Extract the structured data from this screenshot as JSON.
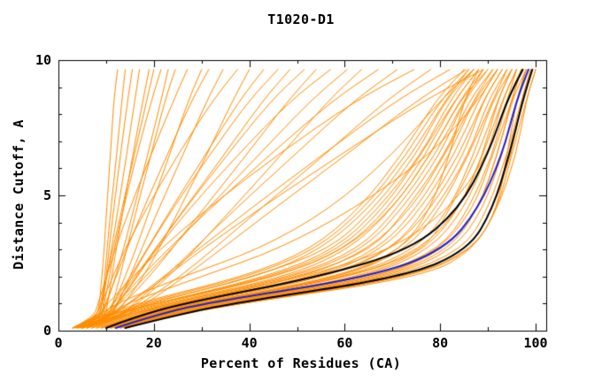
{
  "figure": {
    "background": "#FFFFFF"
  },
  "chart_data": {
    "type": "line",
    "title": "T1020-D1",
    "xlabel": "Percent of Residues (CA)",
    "ylabel": "Distance Cutoff, A",
    "xlim": [
      0,
      100
    ],
    "ylim": [
      0,
      10
    ],
    "x_ticks_major": [
      0,
      20,
      40,
      60,
      80,
      100
    ],
    "x_ticks_minor": [
      10,
      30,
      50,
      70,
      90
    ],
    "y_ticks_major": [
      0,
      5,
      10
    ],
    "y_ticks_minor": [
      1,
      2,
      3,
      4,
      6,
      7,
      8,
      9
    ],
    "grid": false,
    "legend": "none",
    "axis_color": "#000000",
    "background": "#FFFFFF",
    "y_levels": [
      0.1,
      0.5,
      1,
      2,
      3,
      4.5,
      6.5,
      8.5,
      9.65
    ],
    "series": [
      {
        "name": "server-predictions",
        "color": "#FF8C00",
        "line_width": 1,
        "curves": [
          [
            4,
            8,
            8.6,
            9.1,
            9.6,
            10.1,
            10.9,
            11.6,
            12.4
          ],
          [
            4.5,
            8.7,
            9.1,
            9.7,
            10.2,
            11,
            12.2,
            13.3,
            14
          ],
          [
            5,
            9.1,
            9.4,
            10,
            10.6,
            11.6,
            13,
            14.5,
            15.5
          ],
          [
            3.5,
            8.5,
            9.1,
            10.2,
            11.1,
            12.5,
            14.3,
            16,
            17
          ],
          [
            5.5,
            9.8,
            10.3,
            11.2,
            12.1,
            13.6,
            15.6,
            17.7,
            19
          ],
          [
            3,
            8,
            8.8,
            10.1,
            11.4,
            13.3,
            15.9,
            18.5,
            20
          ],
          [
            5,
            9.2,
            9.6,
            10.7,
            11.7,
            13.6,
            16.4,
            19.5,
            21.5
          ],
          [
            4,
            9,
            10.1,
            12,
            13.6,
            15.8,
            18.7,
            21.5,
            23
          ],
          [
            6,
            10.6,
            11.4,
            12.9,
            14.3,
            16.4,
            19.4,
            22.3,
            24.5
          ],
          [
            3,
            7.4,
            8.3,
            10.1,
            11.9,
            14.9,
            19.4,
            24.1,
            27
          ],
          [
            5,
            10.1,
            11.6,
            14,
            16.2,
            19.2,
            23.3,
            27.2,
            30
          ],
          [
            4,
            8.7,
            9.9,
            12.1,
            14.3,
            17.8,
            22.8,
            27.9,
            31.5
          ],
          [
            6,
            11,
            12.4,
            15,
            17.4,
            21,
            26.1,
            31.1,
            34.5
          ],
          [
            3.5,
            7.9,
            9,
            11.4,
            13.9,
            18.4,
            25,
            32.3,
            37.5
          ],
          [
            5,
            11.3,
            13.8,
            17.8,
            21,
            25.4,
            31.1,
            36.5,
            40
          ],
          [
            4,
            9.4,
            11.4,
            15.1,
            18.5,
            23.6,
            30.8,
            37.9,
            43
          ],
          [
            6,
            10.7,
            12.2,
            15.4,
            18.6,
            23.9,
            31.7,
            39.9,
            46
          ],
          [
            3,
            8.9,
            11.6,
            16.1,
            20.2,
            26.4,
            34.7,
            42.8,
            48.5
          ],
          [
            5,
            10.2,
            12.3,
            16.4,
            20.3,
            26.5,
            35.4,
            44.5,
            51.5
          ],
          [
            4,
            10.5,
            13.7,
            19.1,
            23.7,
            30.4,
            39.4,
            48.1,
            54
          ],
          [
            6,
            10.8,
            12.6,
            16.5,
            20.5,
            27.4,
            37.6,
            48.6,
            57
          ],
          [
            3.5,
            9.6,
            12.7,
            18.3,
            23.5,
            31.2,
            42,
            52.8,
            60.5
          ],
          [
            5,
            12.4,
            16.5,
            23.1,
            28.6,
            36.4,
            46.7,
            56.5,
            63.5
          ],
          [
            4,
            9.4,
            12.2,
            17.4,
            22.9,
            31.7,
            44.3,
            57.4,
            67
          ],
          [
            6,
            12.4,
            15.9,
            22.4,
            28.3,
            37.1,
            49.5,
            61.9,
            71
          ],
          [
            3,
            8,
            10.3,
            15.6,
            21.3,
            31.1,
            45.9,
            62.2,
            74.5
          ],
          [
            5,
            12.7,
            17.4,
            25.5,
            32.4,
            42.3,
            55.8,
            68.6,
            78
          ],
          [
            4,
            10.5,
            14.6,
            22.1,
            29.2,
            40.2,
            55.3,
            70.7,
            82
          ],
          [
            6,
            13.5,
            18.4,
            26.5,
            34,
            45.1,
            60.3,
            75,
            85.5
          ],
          [
            4.5,
            10.8,
            14.9,
            22.6,
            30.1,
            42.1,
            59.1,
            76.5,
            89
          ],
          [
            3,
            9,
            16,
            39,
            53,
            63,
            72,
            79,
            85
          ],
          [
            4,
            10,
            17,
            40,
            54,
            64,
            73,
            80,
            86
          ],
          [
            4,
            10,
            18,
            42,
            55,
            65,
            74,
            81,
            86
          ],
          [
            4,
            11,
            19,
            41,
            57,
            66,
            75,
            81,
            87
          ],
          [
            5,
            11,
            20,
            44,
            58,
            67,
            76,
            82,
            87
          ],
          [
            5,
            11,
            20,
            45,
            59,
            68,
            76,
            83,
            88
          ],
          [
            6,
            12,
            21,
            46,
            60,
            69,
            77,
            83,
            88
          ],
          [
            6,
            12,
            22,
            48,
            61,
            70,
            78,
            84,
            89
          ],
          [
            6,
            13,
            23,
            49,
            63,
            71,
            79,
            85,
            89
          ],
          [
            7,
            13,
            23,
            50,
            64,
            72,
            80,
            85,
            90
          ],
          [
            7,
            14,
            24,
            51,
            66,
            73,
            81,
            86,
            91
          ],
          [
            7,
            14,
            25,
            52,
            65,
            74,
            81,
            87,
            91
          ],
          [
            8,
            15,
            26,
            54,
            67,
            75,
            82,
            87,
            92
          ],
          [
            8,
            15,
            26,
            55,
            68,
            76,
            83,
            88,
            92
          ],
          [
            9,
            16,
            27,
            56,
            70,
            77,
            84,
            89,
            93
          ],
          [
            9,
            16,
            28,
            57,
            70,
            78,
            85,
            89,
            93
          ],
          [
            9,
            17,
            29,
            59,
            72,
            79,
            86,
            90,
            94
          ],
          [
            10,
            17,
            29,
            60,
            73,
            80,
            86,
            91,
            94
          ],
          [
            10,
            17,
            30,
            61,
            75,
            82,
            87,
            91,
            95
          ],
          [
            10,
            18,
            31,
            62,
            77,
            82,
            88,
            92,
            95
          ],
          [
            11,
            18,
            32,
            64,
            77,
            84,
            89,
            93,
            96
          ],
          [
            11,
            19,
            33,
            65,
            78,
            85,
            90,
            93,
            96
          ],
          [
            12,
            19,
            33,
            66,
            80,
            86,
            91,
            94,
            97
          ],
          [
            12,
            20,
            34,
            68,
            80,
            87,
            91,
            95,
            97
          ],
          [
            12,
            20,
            35,
            69,
            82,
            88,
            92,
            95,
            98
          ],
          [
            13,
            21,
            36,
            70,
            83,
            89,
            93,
            96,
            98
          ],
          [
            13,
            21,
            36,
            71,
            85,
            90,
            94,
            97,
            99
          ],
          [
            13,
            21,
            37,
            73,
            86,
            91,
            95,
            97,
            99
          ],
          [
            14,
            22,
            38,
            74,
            87,
            92,
            95,
            98,
            100
          ],
          [
            14,
            22,
            38,
            75,
            87,
            92,
            96,
            98,
            100
          ],
          [
            5,
            12,
            25,
            52,
            70,
            82,
            90,
            94,
            96
          ],
          [
            12,
            20,
            38,
            77,
            87,
            92,
            94,
            96,
            98
          ],
          [
            6,
            10,
            14,
            30,
            46,
            62,
            78,
            88,
            92
          ],
          [
            10,
            18,
            30,
            60,
            72,
            78,
            82,
            85,
            88
          ],
          [
            3,
            8,
            12,
            26,
            42,
            57,
            70,
            80,
            87
          ],
          [
            8,
            16,
            28,
            62,
            76,
            84,
            89,
            92,
            95
          ],
          [
            5,
            9,
            20,
            46,
            60,
            70,
            78,
            84,
            90
          ],
          [
            11,
            19,
            33,
            68,
            81,
            88,
            92,
            95,
            97
          ]
        ]
      },
      {
        "name": "reference-black-1",
        "color": "#000000",
        "line_width": 2,
        "curves": [
          [
            10,
            16,
            26,
            55,
            74,
            84,
            90,
            94,
            97.3
          ]
        ]
      },
      {
        "name": "reference-black-2",
        "color": "#000000",
        "line_width": 2,
        "curves": [
          [
            14,
            23,
            36,
            73,
            86,
            91,
            94.5,
            97.3,
            99.3
          ]
        ]
      },
      {
        "name": "highlighted-blue",
        "color": "#2222CC",
        "line_width": 2,
        "curves": [
          [
            12,
            19,
            30,
            66,
            81,
            88,
            93,
            96,
            98.5
          ]
        ]
      }
    ]
  }
}
